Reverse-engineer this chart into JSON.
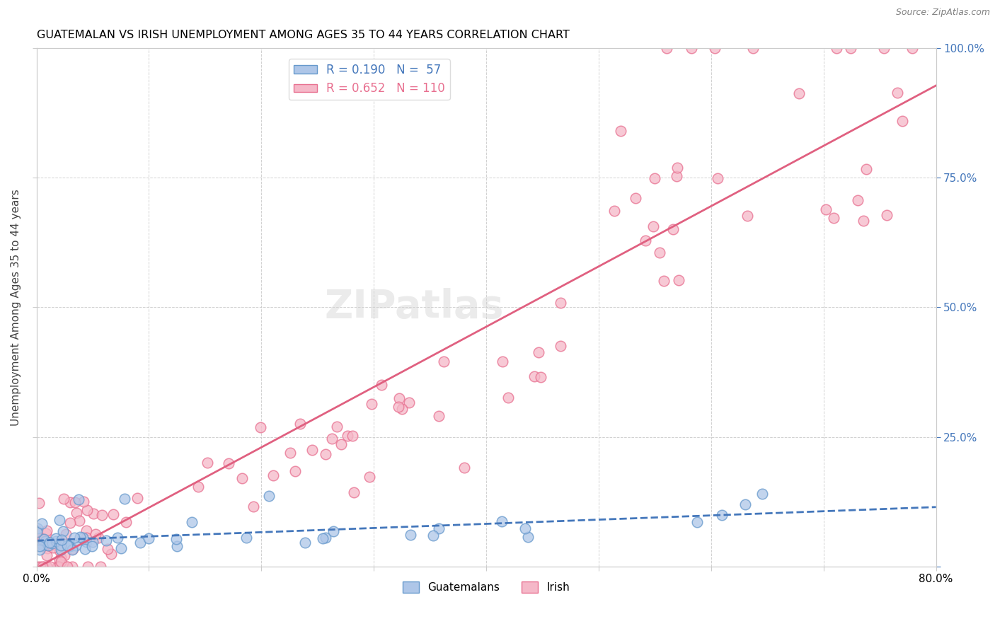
{
  "title": "GUATEMALAN VS IRISH UNEMPLOYMENT AMONG AGES 35 TO 44 YEARS CORRELATION CHART",
  "source": "Source: ZipAtlas.com",
  "ylabel": "Unemployment Among Ages 35 to 44 years",
  "guatemalan_color": "#aec6e8",
  "guatemalan_edge_color": "#6699cc",
  "irish_color": "#f5b8c8",
  "irish_edge_color": "#e87090",
  "guatemalan_line_color": "#4477bb",
  "irish_line_color": "#e06080",
  "watermark": "ZIPatlas",
  "guatemalan_R": 0.19,
  "guatemalan_N": 57,
  "irish_R": 0.652,
  "irish_N": 110
}
